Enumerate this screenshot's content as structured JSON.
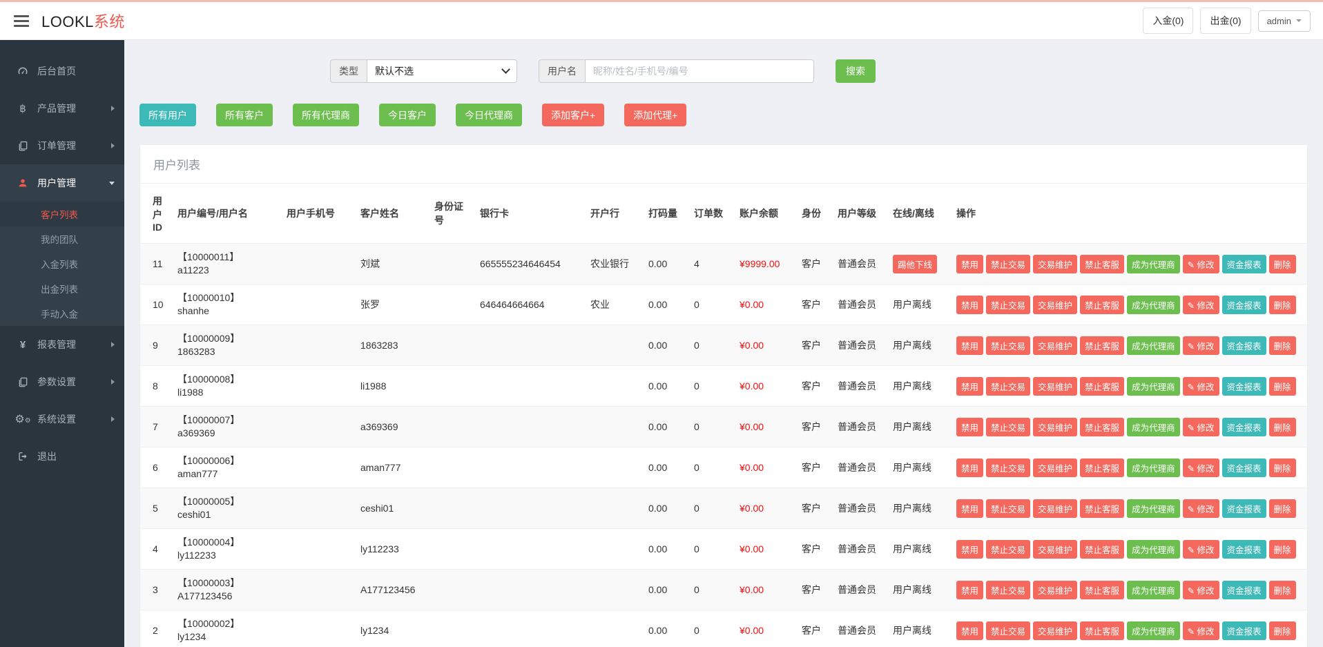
{
  "header": {
    "logo_black": "LOOKL",
    "logo_red": "系统",
    "deposit_button": "入金(0)",
    "withdraw_button": "出金(0)",
    "user_menu": "admin"
  },
  "sidebar": {
    "items": [
      {
        "key": "home",
        "label": "后台首页",
        "icon": "dashboard"
      },
      {
        "key": "products",
        "label": "产品管理",
        "icon": "bitcoin",
        "arrow": "right"
      },
      {
        "key": "orders",
        "label": "订单管理",
        "icon": "orders",
        "arrow": "right"
      },
      {
        "key": "users",
        "label": "用户管理",
        "icon": "user",
        "arrow": "down",
        "active": true,
        "children": [
          {
            "key": "customer-list",
            "label": "客户列表",
            "active": true
          },
          {
            "key": "my-team",
            "label": "我的团队"
          },
          {
            "key": "deposit-list",
            "label": "入金列表"
          },
          {
            "key": "withdraw-list",
            "label": "出金列表"
          },
          {
            "key": "manual-deposit",
            "label": "手动入金"
          }
        ]
      },
      {
        "key": "reports",
        "label": "报表管理",
        "icon": "yen",
        "arrow": "right"
      },
      {
        "key": "params",
        "label": "参数设置",
        "icon": "params",
        "arrow": "right"
      },
      {
        "key": "system",
        "label": "系统设置",
        "icon": "gears",
        "arrow": "right"
      },
      {
        "key": "logout",
        "label": "退出",
        "icon": "logout"
      }
    ]
  },
  "filters": {
    "type_label": "类型",
    "type_value": "默认不选",
    "username_label": "用户名",
    "username_placeholder": "昵称/姓名/手机号/编号",
    "search_button": "搜索"
  },
  "quick_actions": [
    {
      "key": "all-users",
      "label": "所有用户",
      "color": "teal"
    },
    {
      "key": "all-customers",
      "label": "所有客户",
      "color": "green"
    },
    {
      "key": "all-agents",
      "label": "所有代理商",
      "color": "green"
    },
    {
      "key": "today-customers",
      "label": "今日客户",
      "color": "green"
    },
    {
      "key": "today-agents",
      "label": "今日代理商",
      "color": "green"
    },
    {
      "key": "add-customer",
      "label": "添加客户+",
      "color": "red"
    },
    {
      "key": "add-agent",
      "label": "添加代理+",
      "color": "red"
    }
  ],
  "panel": {
    "title": "用户列表",
    "columns": [
      "用户ID",
      "用户编号/用户名",
      "用户手机号",
      "客户姓名",
      "身份证号",
      "银行卡",
      "开户行",
      "打码量",
      "订单数",
      "账户余额",
      "身份",
      "用户等级",
      "在线/离线",
      "操作"
    ],
    "row_ops": [
      {
        "key": "disable",
        "label": "禁用",
        "color": "red"
      },
      {
        "key": "ban-trade",
        "label": "禁止交易",
        "color": "red"
      },
      {
        "key": "trade-maintain",
        "label": "交易维护",
        "color": "red"
      },
      {
        "key": "ban-service",
        "label": "禁止客服",
        "color": "red"
      },
      {
        "key": "make-agent",
        "label": "成为代理商",
        "color": "green"
      },
      {
        "key": "edit",
        "label": "修改",
        "color": "red",
        "icon": "pencil"
      },
      {
        "key": "fund-report",
        "label": "资金报表",
        "color": "teal"
      },
      {
        "key": "delete",
        "label": "删除",
        "color": "red"
      }
    ],
    "kick_offline_label": "踢他下线",
    "rows": [
      {
        "id": "11",
        "code": "【10000011】",
        "username": "a11223",
        "phone": "",
        "name": "刘斌",
        "id_card": "",
        "bank_card": "665555234646454",
        "bank": "农业银行",
        "bet_volume": "0.00",
        "orders": "4",
        "balance": "¥9999.00",
        "identity": "客户",
        "level": "普通会员",
        "online": "踢他下线",
        "online_is_button": true
      },
      {
        "id": "10",
        "code": "【10000010】",
        "username": "shanhe",
        "phone": "",
        "name": "张罗",
        "id_card": "",
        "bank_card": "646464664664",
        "bank": "农业",
        "bet_volume": "0.00",
        "orders": "0",
        "balance": "¥0.00",
        "identity": "客户",
        "level": "普通会员",
        "online": "用户离线",
        "online_is_button": false
      },
      {
        "id": "9",
        "code": "【10000009】",
        "username": "1863283",
        "phone": "",
        "name": "1863283",
        "id_card": "",
        "bank_card": "",
        "bank": "",
        "bet_volume": "0.00",
        "orders": "0",
        "balance": "¥0.00",
        "identity": "客户",
        "level": "普通会员",
        "online": "用户离线",
        "online_is_button": false
      },
      {
        "id": "8",
        "code": "【10000008】",
        "username": "li1988",
        "phone": "",
        "name": "li1988",
        "id_card": "",
        "bank_card": "",
        "bank": "",
        "bet_volume": "0.00",
        "orders": "0",
        "balance": "¥0.00",
        "identity": "客户",
        "level": "普通会员",
        "online": "用户离线",
        "online_is_button": false
      },
      {
        "id": "7",
        "code": "【10000007】",
        "username": "a369369",
        "phone": "",
        "name": "a369369",
        "id_card": "",
        "bank_card": "",
        "bank": "",
        "bet_volume": "0.00",
        "orders": "0",
        "balance": "¥0.00",
        "identity": "客户",
        "level": "普通会员",
        "online": "用户离线",
        "online_is_button": false
      },
      {
        "id": "6",
        "code": "【10000006】",
        "username": "aman777",
        "phone": "",
        "name": "aman777",
        "id_card": "",
        "bank_card": "",
        "bank": "",
        "bet_volume": "0.00",
        "orders": "0",
        "balance": "¥0.00",
        "identity": "客户",
        "level": "普通会员",
        "online": "用户离线",
        "online_is_button": false
      },
      {
        "id": "5",
        "code": "【10000005】",
        "username": "ceshi01",
        "phone": "",
        "name": "ceshi01",
        "id_card": "",
        "bank_card": "",
        "bank": "",
        "bet_volume": "0.00",
        "orders": "0",
        "balance": "¥0.00",
        "identity": "客户",
        "level": "普通会员",
        "online": "用户离线",
        "online_is_button": false
      },
      {
        "id": "4",
        "code": "【10000004】",
        "username": "ly112233",
        "phone": "",
        "name": "ly112233",
        "id_card": "",
        "bank_card": "",
        "bank": "",
        "bet_volume": "0.00",
        "orders": "0",
        "balance": "¥0.00",
        "identity": "客户",
        "level": "普通会员",
        "online": "用户离线",
        "online_is_button": false
      },
      {
        "id": "3",
        "code": "【10000003】",
        "username": "A177123456",
        "phone": "",
        "name": "A177123456",
        "id_card": "",
        "bank_card": "",
        "bank": "",
        "bet_volume": "0.00",
        "orders": "0",
        "balance": "¥0.00",
        "identity": "客户",
        "level": "普通会员",
        "online": "用户离线",
        "online_is_button": false
      },
      {
        "id": "2",
        "code": "【10000002】",
        "username": "ly1234",
        "phone": "",
        "name": "ly1234",
        "id_card": "",
        "bank_card": "",
        "bank": "",
        "bet_volume": "0.00",
        "orders": "0",
        "balance": "¥0.00",
        "identity": "客户",
        "level": "普通会员",
        "online": "用户离线",
        "online_is_button": false
      }
    ]
  },
  "colors": {
    "button_red": "#f5685d",
    "button_green": "#6cbe4e",
    "button_teal": "#3db9b7",
    "balance_red": "#f60d0d",
    "logo_red": "#f0584d",
    "sidebar_bg": "#2a353d",
    "sidebar_group_bg": "#333f49",
    "top_accent": "#f5bcb2"
  }
}
